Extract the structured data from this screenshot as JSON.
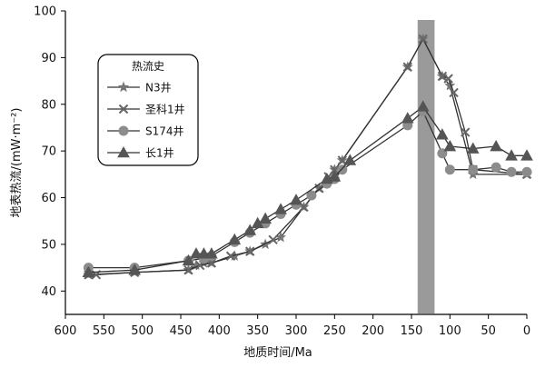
{
  "chart_data": {
    "type": "line",
    "xlabel": "地质时间/Ma",
    "ylabel": "地表热流/(mW·m⁻²)",
    "xlim": [
      600,
      0
    ],
    "ylim": [
      35,
      100
    ],
    "x_reversed": true,
    "x_ticks": [
      600,
      550,
      500,
      450,
      400,
      350,
      300,
      250,
      200,
      150,
      100,
      50,
      0
    ],
    "y_ticks": [
      40,
      50,
      60,
      70,
      80,
      90,
      100
    ],
    "grid": false,
    "legend": {
      "title": "热流史",
      "placement": "top-left"
    },
    "highlight_band": {
      "x_from": 142,
      "x_to": 120,
      "color": "#9a9a9a"
    },
    "series": [
      {
        "name": "N3井",
        "marker": "star",
        "color": "#777777",
        "points": [
          [
            570,
            43.5
          ],
          [
            510,
            44
          ],
          [
            440,
            44.5
          ],
          [
            430,
            45.5
          ],
          [
            420,
            46
          ],
          [
            410,
            46
          ],
          [
            380,
            47.5
          ],
          [
            360,
            48.5
          ],
          [
            340,
            50
          ],
          [
            320,
            51.5
          ],
          [
            290,
            58
          ],
          [
            270,
            62
          ],
          [
            250,
            66
          ],
          [
            240,
            68
          ],
          [
            155,
            88
          ],
          [
            135,
            94
          ],
          [
            110,
            86
          ],
          [
            100,
            84
          ],
          [
            70,
            65
          ],
          [
            0,
            65
          ]
        ]
      },
      {
        "name": "圣科1井",
        "marker": "x",
        "color": "#666666",
        "points": [
          [
            570,
            43.5
          ],
          [
            560,
            43.5
          ],
          [
            510,
            44
          ],
          [
            440,
            44.5
          ],
          [
            425,
            45.5
          ],
          [
            410,
            46
          ],
          [
            385,
            47.5
          ],
          [
            360,
            48.5
          ],
          [
            330,
            51
          ],
          [
            290,
            58
          ],
          [
            270,
            62
          ],
          [
            258,
            64.5
          ],
          [
            250,
            66
          ],
          [
            240,
            68
          ],
          [
            155,
            88
          ],
          [
            135,
            94
          ],
          [
            110,
            86
          ],
          [
            102,
            85.5
          ],
          [
            95,
            82.5
          ],
          [
            80,
            74
          ],
          [
            70,
            66
          ],
          [
            0,
            65
          ]
        ]
      },
      {
        "name": "S174井",
        "marker": "circle",
        "color": "#8c8c8c",
        "points": [
          [
            570,
            45
          ],
          [
            510,
            45
          ],
          [
            440,
            46.5
          ],
          [
            420,
            47
          ],
          [
            410,
            47.5
          ],
          [
            380,
            50.5
          ],
          [
            360,
            52.5
          ],
          [
            340,
            54.5
          ],
          [
            320,
            56.5
          ],
          [
            300,
            58.5
          ],
          [
            280,
            60.5
          ],
          [
            260,
            63
          ],
          [
            250,
            64
          ],
          [
            240,
            66
          ],
          [
            155,
            75.5
          ],
          [
            135,
            78.5
          ],
          [
            110,
            69.5
          ],
          [
            100,
            66
          ],
          [
            70,
            66
          ],
          [
            40,
            66.5
          ],
          [
            20,
            65.5
          ],
          [
            0,
            65.5
          ]
        ]
      },
      {
        "name": "长1井",
        "marker": "triangle",
        "color": "#555555",
        "points": [
          [
            570,
            44
          ],
          [
            510,
            44.5
          ],
          [
            440,
            46.5
          ],
          [
            430,
            48
          ],
          [
            420,
            48
          ],
          [
            410,
            48
          ],
          [
            380,
            51
          ],
          [
            360,
            53
          ],
          [
            350,
            54.5
          ],
          [
            340,
            55.5
          ],
          [
            320,
            57.5
          ],
          [
            300,
            59.5
          ],
          [
            260,
            64
          ],
          [
            250,
            64.5
          ],
          [
            230,
            68
          ],
          [
            155,
            77
          ],
          [
            135,
            79.5
          ],
          [
            110,
            73.5
          ],
          [
            100,
            71
          ],
          [
            70,
            70.5
          ],
          [
            40,
            71
          ],
          [
            20,
            69
          ],
          [
            0,
            69
          ]
        ]
      }
    ]
  }
}
